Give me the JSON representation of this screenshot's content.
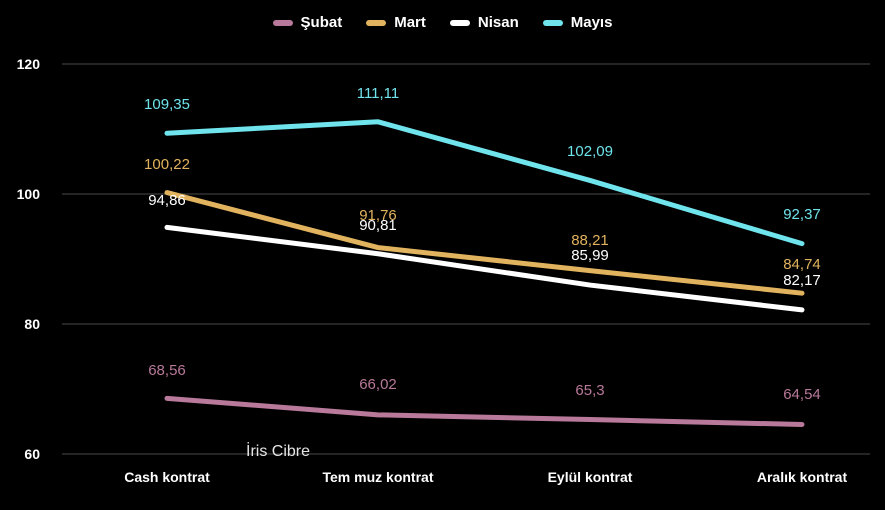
{
  "chart_data": {
    "type": "line",
    "categories": [
      "Cash kontrat",
      "Temmuz kontrat",
      "Eylül kontrat",
      "Aralık kontrat"
    ],
    "category_labels": [
      "Cash kontrat",
      "Tem muz kontrat",
      "Eylül kontrat",
      "Aralık kontrat"
    ],
    "ylim": [
      60,
      120
    ],
    "yticks": [
      60,
      80,
      100,
      120
    ],
    "grid": true,
    "legend": "top",
    "series": [
      {
        "name": "Şubat",
        "color": "#b8799a",
        "values": [
          68.56,
          66.02,
          65.3,
          64.54
        ],
        "labels": [
          "68,56",
          "66,02",
          "65,3",
          "64,54"
        ]
      },
      {
        "name": "Mart",
        "color": "#e2b35e",
        "values": [
          100.22,
          91.76,
          88.21,
          84.74
        ],
        "labels": [
          "100,22",
          "91,76",
          "88,21",
          "84,74"
        ]
      },
      {
        "name": "Nisan",
        "color": "#ffffff",
        "values": [
          94.86,
          90.81,
          85.99,
          82.17
        ],
        "labels": [
          "94,86",
          "90,81",
          "85,99",
          "82,17"
        ]
      },
      {
        "name": "Mayıs",
        "color": "#6fe4ec",
        "values": [
          109.35,
          111.11,
          102.09,
          92.37
        ],
        "labels": [
          "109,35",
          "111,11",
          "102,09",
          "92,37"
        ]
      }
    ]
  },
  "watermark": "İris Cibre"
}
